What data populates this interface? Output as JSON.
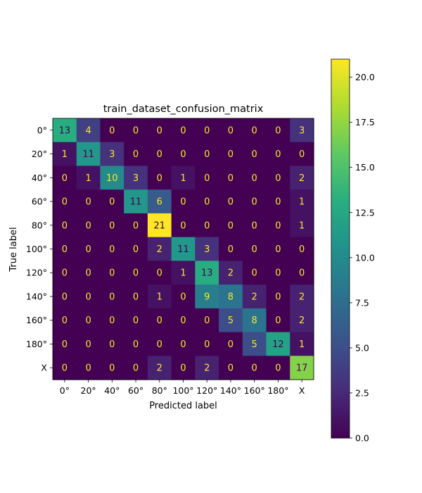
{
  "chart_data": {
    "type": "heatmap",
    "title": "train_dataset_confusion_matrix",
    "xlabel": "Predicted label",
    "ylabel": "True label",
    "x_categories": [
      "0°",
      "20°",
      "40°",
      "60°",
      "80°",
      "100°",
      "120°",
      "140°",
      "160°",
      "180°",
      "X"
    ],
    "y_categories": [
      "0°",
      "20°",
      "40°",
      "60°",
      "80°",
      "100°",
      "120°",
      "140°",
      "160°",
      "180°",
      "X"
    ],
    "matrix": [
      [
        13,
        4,
        0,
        0,
        0,
        0,
        0,
        0,
        0,
        0,
        3
      ],
      [
        1,
        11,
        3,
        0,
        0,
        0,
        0,
        0,
        0,
        0,
        0
      ],
      [
        0,
        1,
        10,
        3,
        0,
        1,
        0,
        0,
        0,
        0,
        2
      ],
      [
        0,
        0,
        0,
        11,
        6,
        0,
        0,
        0,
        0,
        0,
        1
      ],
      [
        0,
        0,
        0,
        0,
        21,
        0,
        0,
        0,
        0,
        0,
        1
      ],
      [
        0,
        0,
        0,
        0,
        2,
        11,
        3,
        0,
        0,
        0,
        0
      ],
      [
        0,
        0,
        0,
        0,
        0,
        1,
        13,
        2,
        0,
        0,
        0
      ],
      [
        0,
        0,
        0,
        0,
        1,
        0,
        9,
        8,
        2,
        0,
        2
      ],
      [
        0,
        0,
        0,
        0,
        0,
        0,
        0,
        5,
        8,
        0,
        2
      ],
      [
        0,
        0,
        0,
        0,
        0,
        0,
        0,
        0,
        5,
        12,
        1
      ],
      [
        0,
        0,
        0,
        0,
        2,
        0,
        2,
        0,
        0,
        0,
        17
      ]
    ],
    "colormap": "viridis",
    "value_range": [
      0,
      21
    ],
    "colorbar_ticks": [
      "0.0",
      "2.5",
      "5.0",
      "7.5",
      "10.0",
      "12.5",
      "15.0",
      "17.5",
      "20.0"
    ],
    "text_colors": {
      "light": "#fde725",
      "dark": "#440154"
    }
  }
}
